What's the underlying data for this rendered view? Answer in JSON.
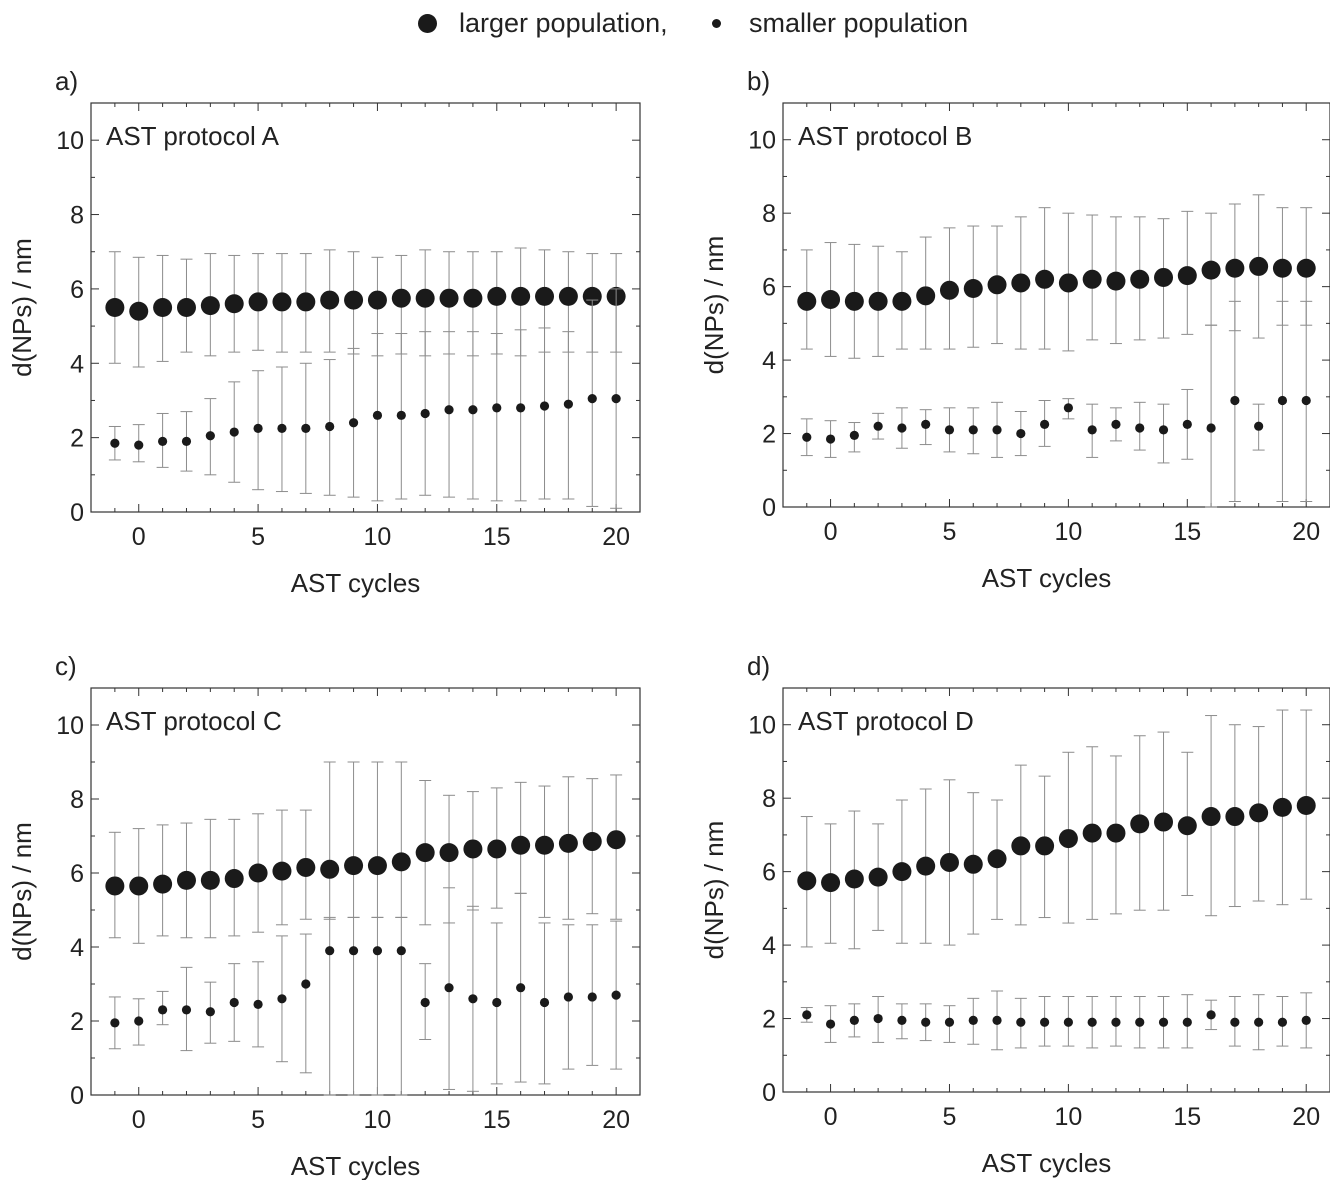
{
  "legend": {
    "large_label": "larger population,",
    "small_label": "smaller population"
  },
  "colors": {
    "marker": "#1a1a1a",
    "errorbar": "#8c8c8c",
    "axis": "#333333"
  },
  "chart_data": [
    {
      "type": "scatter",
      "panel_label": "a)",
      "annotation": "AST protocol A",
      "xlabel": "AST cycles",
      "ylabel": "d(NPs) / nm",
      "xlim": [
        -2,
        21
      ],
      "ylim": [
        0,
        11
      ],
      "xticks": [
        0,
        5,
        10,
        15,
        20
      ],
      "yticks": [
        0,
        2,
        4,
        6,
        8,
        10
      ],
      "grid": false,
      "series": [
        {
          "name": "larger population",
          "x": [
            -1,
            0,
            1,
            2,
            3,
            4,
            5,
            6,
            7,
            8,
            9,
            10,
            11,
            12,
            13,
            14,
            15,
            16,
            17,
            18,
            19,
            20
          ],
          "y": [
            5.5,
            5.4,
            5.5,
            5.5,
            5.55,
            5.6,
            5.65,
            5.65,
            5.65,
            5.7,
            5.7,
            5.7,
            5.75,
            5.75,
            5.75,
            5.75,
            5.8,
            5.8,
            5.8,
            5.8,
            5.8,
            5.8
          ],
          "err_low": [
            4.0,
            3.9,
            4.05,
            4.3,
            4.2,
            4.3,
            4.35,
            4.3,
            4.3,
            4.3,
            4.25,
            4.2,
            4.25,
            4.2,
            4.25,
            4.2,
            4.25,
            4.2,
            4.3,
            4.3,
            4.3,
            4.3
          ],
          "err_high": [
            7.0,
            6.85,
            6.9,
            6.8,
            6.95,
            6.9,
            6.95,
            6.95,
            6.95,
            7.05,
            7.0,
            6.85,
            6.9,
            7.05,
            7.0,
            7.0,
            7.0,
            7.1,
            7.05,
            7.0,
            6.95,
            6.95
          ]
        },
        {
          "name": "smaller population",
          "x": [
            -1,
            0,
            1,
            2,
            3,
            4,
            5,
            6,
            7,
            8,
            9,
            10,
            11,
            12,
            13,
            14,
            15,
            16,
            17,
            18,
            19,
            20
          ],
          "y": [
            1.85,
            1.8,
            1.9,
            1.9,
            2.05,
            2.15,
            2.25,
            2.25,
            2.25,
            2.3,
            2.4,
            2.6,
            2.6,
            2.65,
            2.75,
            2.75,
            2.8,
            2.8,
            2.85,
            2.9,
            3.05,
            3.05
          ],
          "err_low": [
            1.4,
            1.35,
            1.2,
            1.1,
            1.0,
            0.8,
            0.6,
            0.55,
            0.5,
            0.45,
            0.4,
            0.3,
            0.35,
            0.45,
            0.4,
            0.35,
            0.3,
            0.3,
            0.35,
            0.35,
            0.15,
            0.1
          ],
          "err_high": [
            2.3,
            2.35,
            2.65,
            2.7,
            3.05,
            3.5,
            3.8,
            3.9,
            4.0,
            4.1,
            4.4,
            4.8,
            4.8,
            4.85,
            4.85,
            4.85,
            4.8,
            4.9,
            4.95,
            4.85,
            5.7,
            6.0
          ]
        }
      ]
    },
    {
      "type": "scatter",
      "panel_label": "b)",
      "annotation": "AST protocol B",
      "xlabel": "AST cycles",
      "ylabel": "d(NPs) / nm",
      "xlim": [
        -2,
        21
      ],
      "ylim": [
        0,
        11
      ],
      "xticks": [
        0,
        5,
        10,
        15,
        20
      ],
      "yticks": [
        0,
        2,
        4,
        6,
        8,
        10
      ],
      "grid": false,
      "series": [
        {
          "name": "larger population",
          "x": [
            -1,
            0,
            1,
            2,
            3,
            4,
            5,
            6,
            7,
            8,
            9,
            10,
            11,
            12,
            13,
            14,
            15,
            16,
            17,
            18,
            19,
            20
          ],
          "y": [
            5.6,
            5.65,
            5.6,
            5.6,
            5.6,
            5.75,
            5.9,
            5.95,
            6.05,
            6.1,
            6.2,
            6.1,
            6.2,
            6.15,
            6.2,
            6.25,
            6.3,
            6.45,
            6.5,
            6.55,
            6.5,
            6.5
          ],
          "err_low": [
            4.3,
            4.1,
            4.05,
            4.1,
            4.3,
            4.3,
            4.3,
            4.35,
            4.45,
            4.3,
            4.3,
            4.25,
            4.55,
            4.45,
            4.55,
            4.6,
            4.7,
            4.95,
            4.8,
            4.6,
            4.95,
            4.95
          ],
          "err_high": [
            7.0,
            7.2,
            7.15,
            7.1,
            6.95,
            7.35,
            7.6,
            7.65,
            7.65,
            7.9,
            8.15,
            8.0,
            7.95,
            7.9,
            7.9,
            7.85,
            8.05,
            8.0,
            8.25,
            8.5,
            8.15,
            8.15
          ]
        },
        {
          "name": "smaller population",
          "x": [
            -1,
            0,
            1,
            2,
            3,
            4,
            5,
            6,
            7,
            8,
            9,
            10,
            11,
            12,
            13,
            14,
            15,
            16,
            17,
            18,
            19,
            20
          ],
          "y": [
            1.9,
            1.85,
            1.95,
            2.2,
            2.15,
            2.25,
            2.1,
            2.1,
            2.1,
            2.0,
            2.25,
            2.7,
            2.1,
            2.25,
            2.15,
            2.1,
            2.25,
            2.15,
            2.9,
            2.2,
            2.9,
            2.9
          ],
          "err_low": [
            1.4,
            1.35,
            1.5,
            1.85,
            1.6,
            1.7,
            1.5,
            1.45,
            1.35,
            1.4,
            1.65,
            2.4,
            1.35,
            1.8,
            1.55,
            1.2,
            1.3,
            0.0,
            0.15,
            1.55,
            0.15,
            0.15
          ],
          "err_high": [
            2.4,
            2.35,
            2.3,
            2.55,
            2.7,
            2.65,
            2.7,
            2.7,
            2.85,
            2.6,
            2.9,
            2.95,
            2.8,
            2.7,
            2.85,
            2.8,
            3.2,
            4.95,
            5.6,
            2.8,
            5.6,
            5.6
          ]
        }
      ]
    },
    {
      "type": "scatter",
      "panel_label": "c)",
      "annotation": "AST protocol C",
      "xlabel": "AST cycles",
      "ylabel": "d(NPs) / nm",
      "xlim": [
        -2,
        21
      ],
      "ylim": [
        0,
        11
      ],
      "xticks": [
        0,
        5,
        10,
        15,
        20
      ],
      "yticks": [
        0,
        2,
        4,
        6,
        8,
        10
      ],
      "grid": false,
      "series": [
        {
          "name": "larger population",
          "x": [
            -1,
            0,
            1,
            2,
            3,
            4,
            5,
            6,
            7,
            8,
            9,
            10,
            11,
            12,
            13,
            14,
            15,
            16,
            17,
            18,
            19,
            20
          ],
          "y": [
            5.65,
            5.65,
            5.7,
            5.8,
            5.8,
            5.85,
            6.0,
            6.05,
            6.15,
            6.1,
            6.2,
            6.2,
            6.3,
            6.55,
            6.55,
            6.65,
            6.65,
            6.75,
            6.75,
            6.8,
            6.85,
            6.9
          ],
          "err_low": [
            4.25,
            4.1,
            4.3,
            4.25,
            4.25,
            4.3,
            4.4,
            4.6,
            4.75,
            4.75,
            4.8,
            4.8,
            4.8,
            4.6,
            4.65,
            5.0,
            5.05,
            5.45,
            4.8,
            4.75,
            4.9,
            4.75
          ],
          "err_high": [
            7.1,
            7.2,
            7.3,
            7.35,
            7.45,
            7.45,
            7.6,
            7.7,
            7.7,
            9.0,
            9.0,
            9.0,
            9.0,
            8.5,
            8.1,
            8.2,
            8.3,
            8.45,
            8.35,
            8.6,
            8.55,
            8.65
          ]
        },
        {
          "name": "smaller population",
          "x": [
            -1,
            0,
            1,
            2,
            3,
            4,
            5,
            6,
            7,
            8,
            9,
            10,
            11,
            12,
            13,
            14,
            15,
            16,
            17,
            18,
            19,
            20
          ],
          "y": [
            1.95,
            2.0,
            2.3,
            2.3,
            2.25,
            2.5,
            2.45,
            2.6,
            3.0,
            3.9,
            3.9,
            3.9,
            3.9,
            2.5,
            2.9,
            2.6,
            2.5,
            2.9,
            2.5,
            2.65,
            2.65,
            2.7
          ],
          "err_low": [
            1.25,
            1.35,
            1.9,
            1.2,
            1.4,
            1.45,
            1.3,
            0.9,
            0.6,
            0.0,
            0.0,
            0.0,
            0.0,
            1.5,
            0.15,
            0.1,
            0.3,
            0.35,
            0.3,
            0.7,
            0.8,
            0.7
          ],
          "err_high": [
            2.65,
            2.6,
            2.8,
            3.45,
            3.05,
            3.55,
            3.6,
            4.3,
            4.35,
            4.8,
            4.8,
            4.8,
            4.8,
            3.55,
            5.6,
            5.1,
            4.65,
            5.45,
            4.65,
            4.6,
            4.6,
            4.7
          ]
        }
      ]
    },
    {
      "type": "scatter",
      "panel_label": "d)",
      "annotation": "AST protocol D",
      "xlabel": "AST cycles",
      "ylabel": "d(NPs) / nm",
      "xlim": [
        -2,
        21
      ],
      "ylim": [
        0,
        11
      ],
      "xticks": [
        0,
        5,
        10,
        15,
        20
      ],
      "yticks": [
        0,
        2,
        4,
        6,
        8,
        10
      ],
      "grid": false,
      "series": [
        {
          "name": "larger population",
          "x": [
            -1,
            0,
            1,
            2,
            3,
            4,
            5,
            6,
            7,
            8,
            9,
            10,
            11,
            12,
            13,
            14,
            15,
            16,
            17,
            18,
            19,
            20
          ],
          "y": [
            5.75,
            5.7,
            5.8,
            5.85,
            6.0,
            6.15,
            6.25,
            6.2,
            6.35,
            6.7,
            6.7,
            6.9,
            7.05,
            7.05,
            7.3,
            7.35,
            7.25,
            7.5,
            7.5,
            7.6,
            7.75,
            7.8
          ],
          "err_low": [
            3.95,
            4.05,
            3.9,
            4.4,
            4.05,
            4.05,
            4.0,
            4.3,
            4.7,
            4.55,
            4.75,
            4.6,
            4.7,
            4.85,
            4.95,
            4.95,
            5.35,
            4.8,
            5.05,
            5.2,
            5.1,
            5.25
          ],
          "err_high": [
            7.5,
            7.3,
            7.65,
            7.3,
            7.95,
            8.25,
            8.5,
            8.15,
            7.95,
            8.9,
            8.6,
            9.25,
            9.4,
            9.15,
            9.7,
            9.8,
            9.25,
            10.25,
            10.0,
            9.95,
            10.4,
            10.4
          ]
        },
        {
          "name": "smaller population",
          "x": [
            -1,
            0,
            1,
            2,
            3,
            4,
            5,
            6,
            7,
            8,
            9,
            10,
            11,
            12,
            13,
            14,
            15,
            16,
            17,
            18,
            19,
            20
          ],
          "y": [
            2.1,
            1.85,
            1.95,
            2.0,
            1.95,
            1.9,
            1.9,
            1.95,
            1.95,
            1.9,
            1.9,
            1.9,
            1.9,
            1.9,
            1.9,
            1.9,
            1.9,
            2.1,
            1.9,
            1.9,
            1.9,
            1.95
          ],
          "err_low": [
            1.9,
            1.35,
            1.5,
            1.35,
            1.45,
            1.4,
            1.35,
            1.3,
            1.15,
            1.2,
            1.25,
            1.25,
            1.2,
            1.25,
            1.2,
            1.2,
            1.2,
            1.7,
            1.25,
            1.15,
            1.25,
            1.2
          ],
          "err_high": [
            2.3,
            2.35,
            2.4,
            2.6,
            2.4,
            2.4,
            2.35,
            2.55,
            2.75,
            2.55,
            2.6,
            2.6,
            2.6,
            2.6,
            2.6,
            2.6,
            2.65,
            2.5,
            2.6,
            2.65,
            2.6,
            2.7
          ]
        }
      ]
    }
  ]
}
